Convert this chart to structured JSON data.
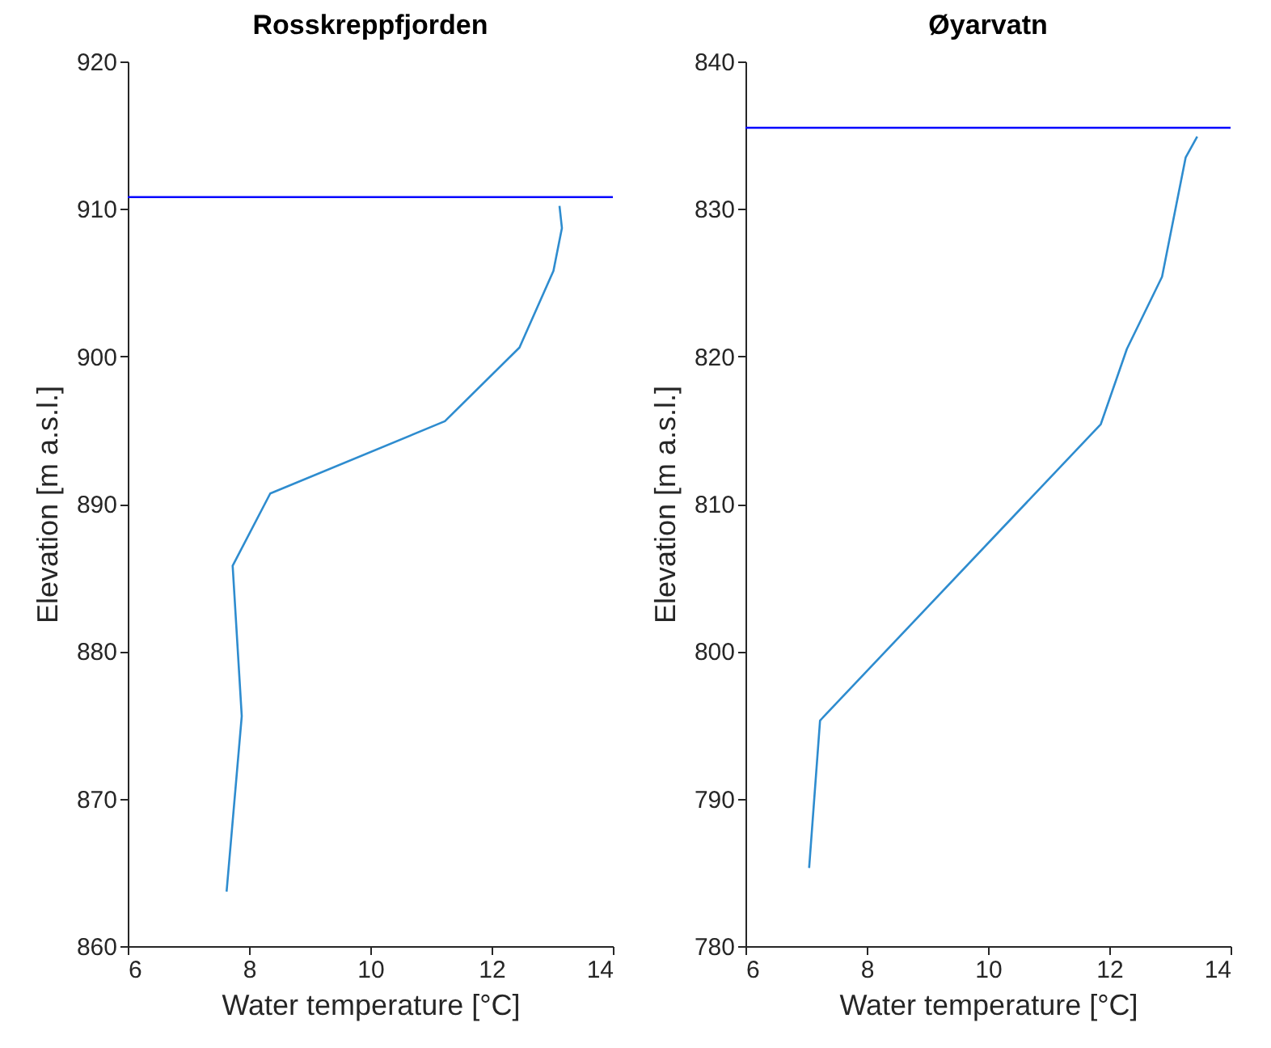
{
  "chart_data": [
    {
      "type": "line",
      "title": "Rosskreppfjorden",
      "xlabel": "Water temperature [°C]",
      "ylabel": "Elevation [m a.s.l.]",
      "xlim": [
        6,
        14
      ],
      "xticks": [
        6,
        8,
        10,
        12,
        14
      ],
      "ylim": [
        860,
        920
      ],
      "yticks": [
        860,
        870,
        880,
        890,
        900,
        910,
        920
      ],
      "series": [
        {
          "color": "#2e8ccf",
          "x": [
            13.12,
            13.16,
            13.02,
            12.46,
            11.23,
            8.35,
            7.73,
            7.88,
            7.63
          ],
          "values": [
            910.2,
            908.7,
            905.8,
            900.6,
            895.6,
            890.7,
            885.8,
            875.6,
            863.7
          ]
        }
      ],
      "ref_lines": [
        {
          "axis": "y",
          "value": 910.8,
          "color": "#0000ff"
        }
      ]
    },
    {
      "type": "line",
      "title": "Øyarvatn",
      "xlabel": "Water temperature [°C]",
      "ylabel": "Elevation [m a.s.l.]",
      "xlim": [
        6,
        14
      ],
      "xticks": [
        6,
        8,
        10,
        12,
        14
      ],
      "ylim": [
        780,
        840
      ],
      "yticks": [
        780,
        790,
        800,
        810,
        820,
        830,
        840
      ],
      "series": [
        {
          "color": "#2e8ccf",
          "x": [
            13.45,
            13.26,
            12.87,
            12.29,
            11.86,
            7.23,
            7.05
          ],
          "values": [
            834.9,
            833.5,
            825.4,
            820.5,
            815.4,
            795.3,
            785.3
          ]
        }
      ],
      "ref_lines": [
        {
          "axis": "y",
          "value": 835.5,
          "color": "#0000ff"
        }
      ]
    }
  ]
}
